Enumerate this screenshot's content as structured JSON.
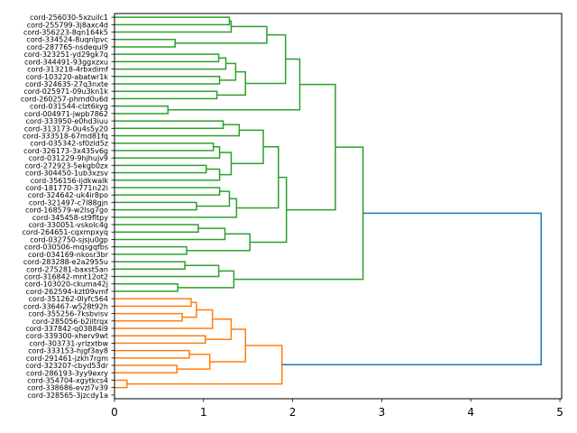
{
  "chart_data": {
    "type": "dendrogram",
    "orientation": "left-to-right",
    "title": "",
    "xlabel": "",
    "ylabel": "",
    "xlim": [
      0,
      5.02
    ],
    "xticks": [
      0,
      1,
      2,
      3,
      4,
      5
    ],
    "xtick_labels": [
      "0",
      "1",
      "2",
      "3",
      "4",
      "5"
    ],
    "grid": false,
    "colors": {
      "cluster_green": "#2ca02c",
      "cluster_orange": "#ff7f0e",
      "above_threshold": "#1f77b4"
    },
    "leaves": [
      "cord-256030-5xzuilc1",
      "cord-255799-3j8axc4d",
      "cord-356223-8qn164k5",
      "cord-334524-8uqnlpvc",
      "cord-287765-nsdequl9",
      "cord-323251-yd29gk7q",
      "cord-344491-93ggxzxu",
      "cord-313218-4rbxdimf",
      "cord-103220-abatwr1k",
      "cord-324635-27q3nxte",
      "cord-025971-09u3kn1k",
      "cord-260257-phmd0u6d",
      "cord-031544-clzt6kyg",
      "cord-004971-jwpb7862",
      "cord-333950-e0hd3iuu",
      "cord-313173-0u4s5y20",
      "cord-333518-67md81fq",
      "cord-035342-sf0zld5z",
      "cord-326173-3x435v6g",
      "cord-031229-9hjhujv9",
      "cord-272923-5ekgb0zx",
      "cord-304450-1ub3xzsv",
      "cord-356156-ijdkwalk",
      "cord-181770-3771n22i",
      "cord-324642-uk4ir8po",
      "cord-321497-c7l88gjn",
      "cord-168579-w2lsg7go",
      "cord-345458-st9fltpy",
      "cord-330051-vskolc4g",
      "cord-264651-cqxmpxyq",
      "cord-032750-sjsju0gp",
      "cord-030506-mqsgqfbs",
      "cord-034169-nkosr3br",
      "cord-283288-e2a2955u",
      "cord-275281-baxst5an",
      "cord-316842-mnt12ot2",
      "cord-103020-ckuma42j",
      "cord-262594-kzt09vmf",
      "cord-351262-0lyfc564",
      "cord-336467-w528t92h",
      "cord-355256-7ksbvisv",
      "cord-285056-b2iltrqx",
      "cord-337842-q03884i9",
      "cord-339300-xherv9wt",
      "cord-303731-yrlzxtbw",
      "cord-333153-hjgf3ay8",
      "cord-291461-jzkh7rgm",
      "cord-323207-cbyd53dr",
      "cord-286193-3yy9exry",
      "cord-354704-xgytkcs4",
      "cord-338686-evzl7v39",
      "cord-328565-3jzcdy1a"
    ],
    "merges": [
      {
        "id": "a1",
        "children": [
          0,
          1
        ],
        "height": 1.29,
        "color": "green"
      },
      {
        "id": "a2",
        "children": [
          "a1",
          2
        ],
        "height": 1.31,
        "color": "green"
      },
      {
        "id": "a3",
        "children": [
          3,
          4
        ],
        "height": 0.68,
        "color": "green"
      },
      {
        "id": "a4",
        "children": [
          "a2",
          "a3"
        ],
        "height": 1.71,
        "color": "green"
      },
      {
        "id": "b1",
        "children": [
          5,
          6
        ],
        "height": 1.17,
        "color": "green"
      },
      {
        "id": "b2",
        "children": [
          "b1",
          7
        ],
        "height": 1.25,
        "color": "green"
      },
      {
        "id": "b3",
        "children": [
          8,
          9
        ],
        "height": 1.18,
        "color": "green"
      },
      {
        "id": "b4",
        "children": [
          "b2",
          "b3"
        ],
        "height": 1.36,
        "color": "green"
      },
      {
        "id": "b5",
        "children": [
          10,
          11
        ],
        "height": 1.15,
        "color": "green"
      },
      {
        "id": "b6",
        "children": [
          "b4",
          "b5"
        ],
        "height": 1.47,
        "color": "green"
      },
      {
        "id": "c1",
        "children": [
          "a4",
          "b6"
        ],
        "height": 1.92,
        "color": "green"
      },
      {
        "id": "c2",
        "children": [
          12,
          13
        ],
        "height": 0.6,
        "color": "green"
      },
      {
        "id": "c3",
        "children": [
          "c1",
          "c2"
        ],
        "height": 2.08,
        "color": "green"
      },
      {
        "id": "d1",
        "children": [
          14,
          15
        ],
        "height": 1.22,
        "color": "green"
      },
      {
        "id": "d2",
        "children": [
          "d1",
          16
        ],
        "height": 1.4,
        "color": "green"
      },
      {
        "id": "d3",
        "children": [
          17,
          18
        ],
        "height": 1.11,
        "color": "green"
      },
      {
        "id": "d4",
        "children": [
          "d3",
          19
        ],
        "height": 1.18,
        "color": "green"
      },
      {
        "id": "d5",
        "children": [
          20,
          21
        ],
        "height": 1.03,
        "color": "green"
      },
      {
        "id": "d6",
        "children": [
          "d5",
          22
        ],
        "height": 1.18,
        "color": "green"
      },
      {
        "id": "d7",
        "children": [
          "d4",
          "d6"
        ],
        "height": 1.31,
        "color": "green"
      },
      {
        "id": "d8",
        "children": [
          "d2",
          "d7"
        ],
        "height": 1.67,
        "color": "green"
      },
      {
        "id": "e1",
        "children": [
          23,
          24
        ],
        "height": 1.18,
        "color": "green"
      },
      {
        "id": "e2",
        "children": [
          25,
          26
        ],
        "height": 0.92,
        "color": "green"
      },
      {
        "id": "e3",
        "children": [
          "e1",
          "e2"
        ],
        "height": 1.29,
        "color": "green"
      },
      {
        "id": "e4",
        "children": [
          "e3",
          27
        ],
        "height": 1.37,
        "color": "green"
      },
      {
        "id": "e5",
        "children": [
          "d8",
          "e4"
        ],
        "height": 1.84,
        "color": "green"
      },
      {
        "id": "f1",
        "children": [
          28,
          29
        ],
        "height": 0.94,
        "color": "green"
      },
      {
        "id": "f2",
        "children": [
          "f1",
          30
        ],
        "height": 1.24,
        "color": "green"
      },
      {
        "id": "f3",
        "children": [
          31,
          32
        ],
        "height": 0.81,
        "color": "green"
      },
      {
        "id": "f4",
        "children": [
          "f2",
          "f3"
        ],
        "height": 1.52,
        "color": "green"
      },
      {
        "id": "f5",
        "children": [
          "e5",
          "f4"
        ],
        "height": 1.93,
        "color": "green"
      },
      {
        "id": "g0",
        "children": [
          "c3",
          "f5"
        ],
        "height": 2.48,
        "color": "green"
      },
      {
        "id": "g1",
        "children": [
          33,
          34
        ],
        "height": 0.79,
        "color": "green"
      },
      {
        "id": "g2",
        "children": [
          "g1",
          35
        ],
        "height": 1.17,
        "color": "green"
      },
      {
        "id": "g3",
        "children": [
          36,
          37
        ],
        "height": 0.71,
        "color": "green"
      },
      {
        "id": "g4",
        "children": [
          "g2",
          "g3"
        ],
        "height": 1.34,
        "color": "green"
      },
      {
        "id": "g5",
        "children": [
          "g0",
          "g4"
        ],
        "height": 2.79,
        "color": "green"
      },
      {
        "id": "h1",
        "children": [
          38,
          39
        ],
        "height": 0.86,
        "color": "orange"
      },
      {
        "id": "h2",
        "children": [
          40,
          41
        ],
        "height": 0.76,
        "color": "orange"
      },
      {
        "id": "h3",
        "children": [
          "h1",
          "h2"
        ],
        "height": 0.92,
        "color": "orange"
      },
      {
        "id": "h4",
        "children": [
          "h3",
          42
        ],
        "height": 1.1,
        "color": "orange"
      },
      {
        "id": "h5",
        "children": [
          43,
          44
        ],
        "height": 1.02,
        "color": "orange"
      },
      {
        "id": "h6",
        "children": [
          "h4",
          "h5"
        ],
        "height": 1.31,
        "color": "orange"
      },
      {
        "id": "h7",
        "children": [
          45,
          46
        ],
        "height": 0.84,
        "color": "orange"
      },
      {
        "id": "h8",
        "children": [
          47,
          48
        ],
        "height": 0.7,
        "color": "orange"
      },
      {
        "id": "h9",
        "children": [
          "h7",
          "h8"
        ],
        "height": 1.07,
        "color": "orange"
      },
      {
        "id": "h10",
        "children": [
          "h6",
          "h9"
        ],
        "height": 1.47,
        "color": "orange"
      },
      {
        "id": "h11",
        "children": [
          49,
          50
        ],
        "height": 0.14,
        "color": "orange"
      },
      {
        "id": "h12",
        "children": [
          "h10",
          "h11"
        ],
        "height": 1.88,
        "color": "orange"
      },
      {
        "id": "root",
        "children": [
          "g5",
          "h12"
        ],
        "height": 4.79,
        "color": "blue"
      }
    ]
  }
}
